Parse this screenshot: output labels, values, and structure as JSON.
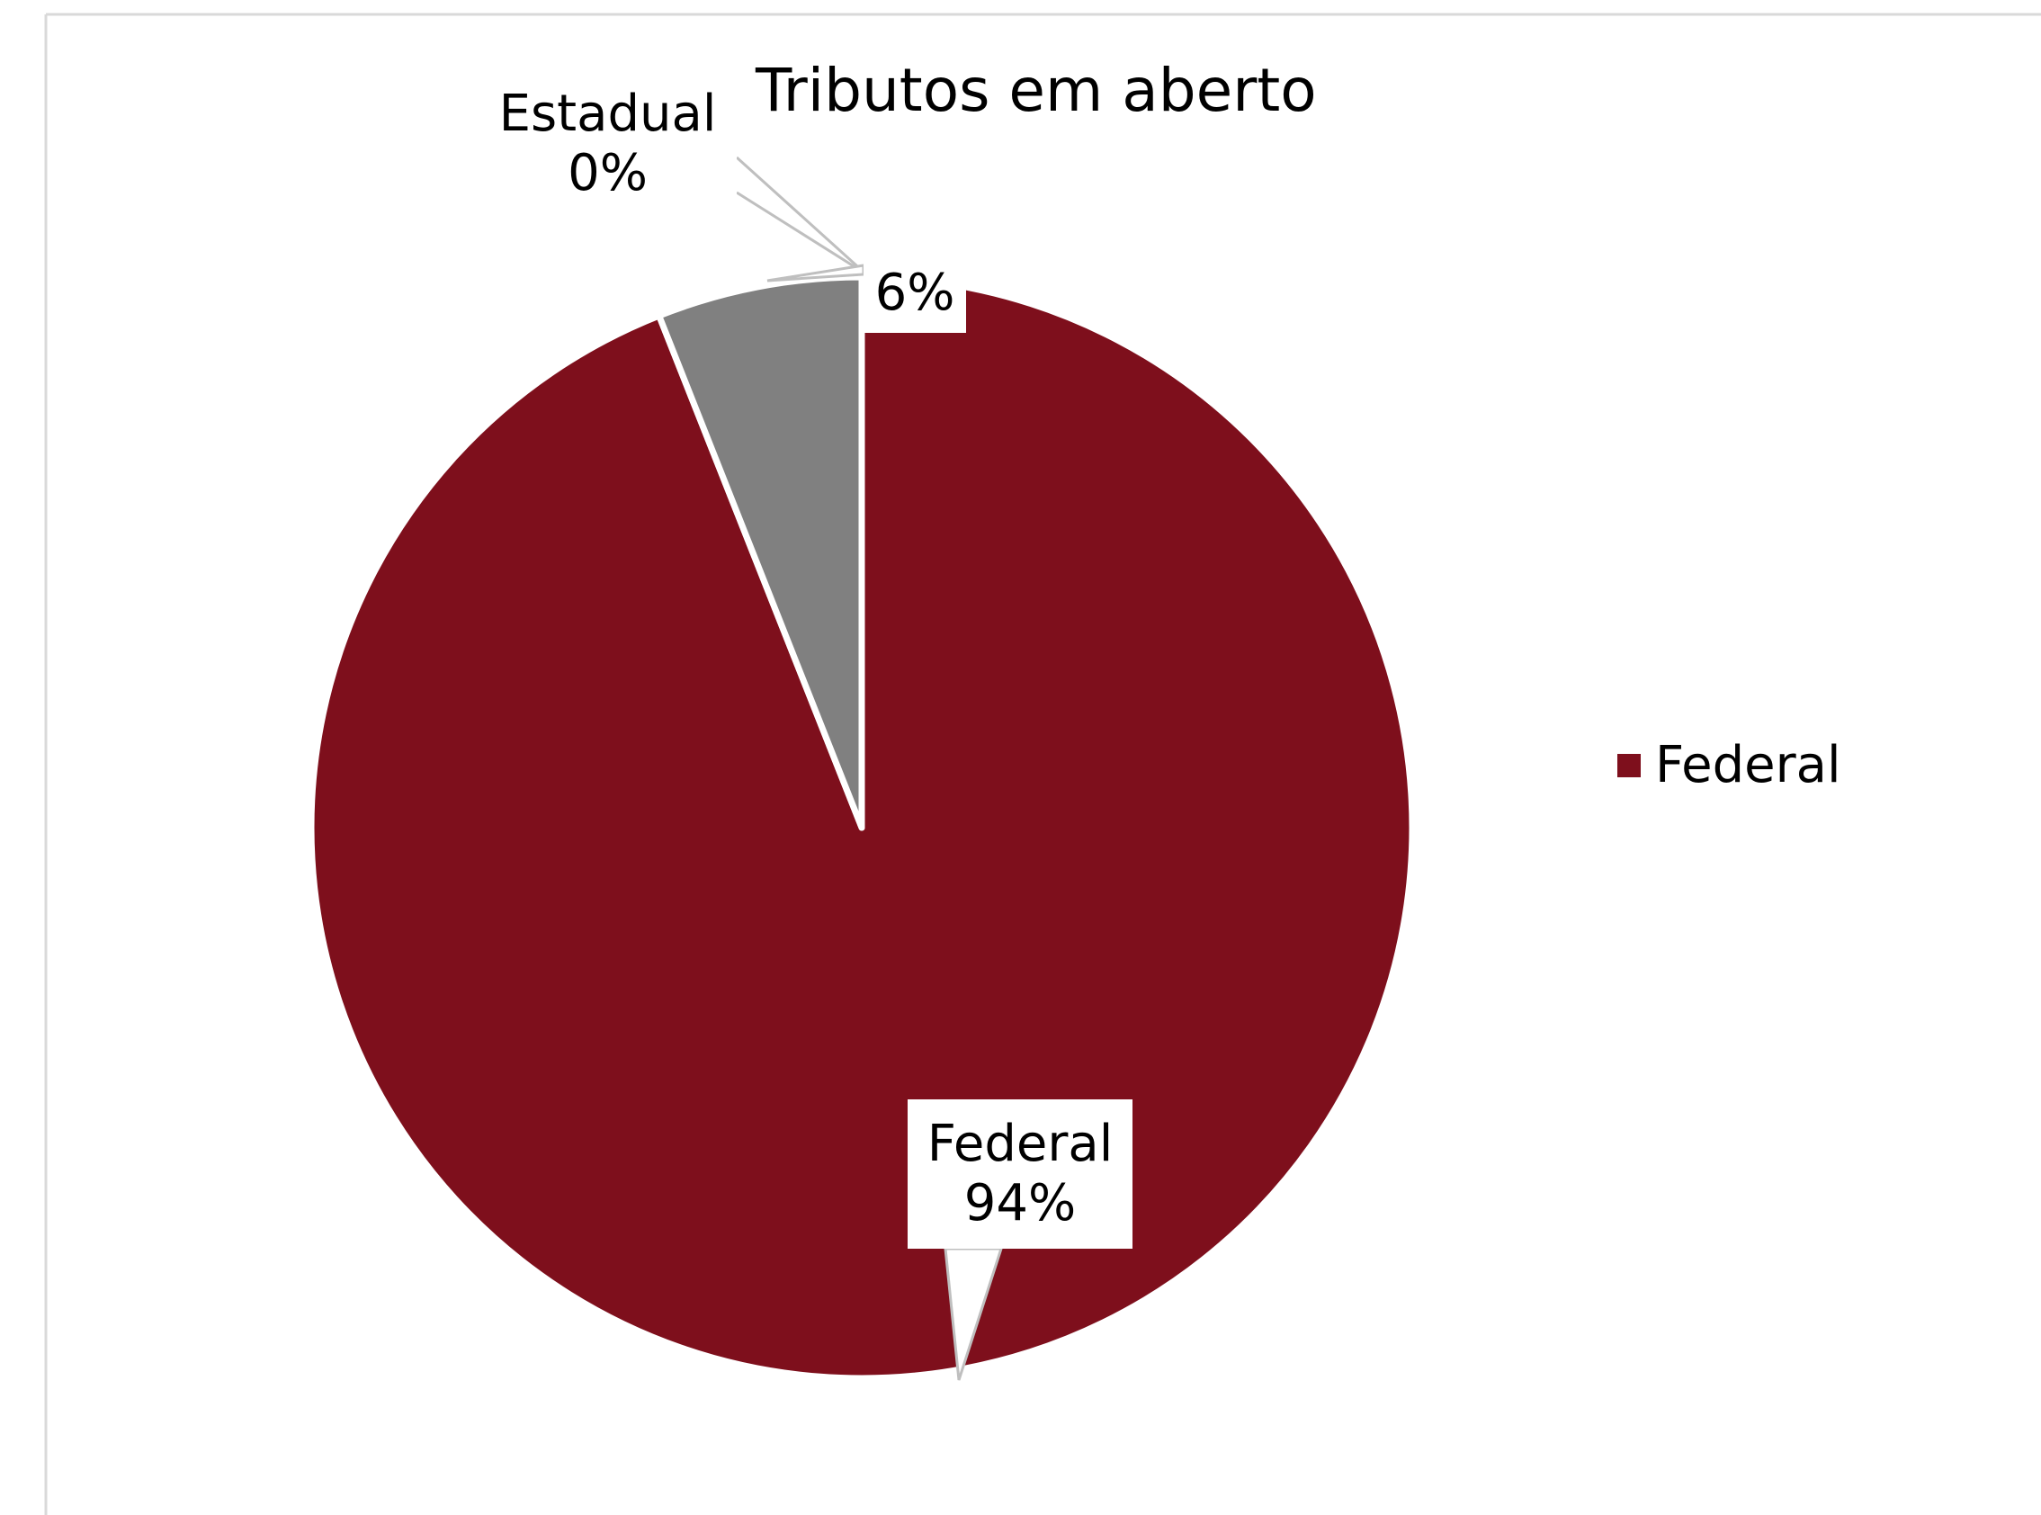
{
  "chart_data": {
    "type": "pie",
    "title": "Tributos em aberto",
    "slices": [
      {
        "name": "Federal",
        "value": 94,
        "label_name": "Federal",
        "label_pct": "94%",
        "color": "#7e0f1c"
      },
      {
        "name": "",
        "value": 6,
        "label_name": "",
        "label_pct": "6%",
        "color": "#808080"
      },
      {
        "name": "Estadual",
        "value": 0,
        "label_name": "Estadual",
        "label_pct": "0%",
        "color": "#7e0f1c"
      }
    ],
    "legend": {
      "placement": "right",
      "items": [
        {
          "label": "Federal",
          "color": "#7e0f1c"
        }
      ]
    }
  }
}
